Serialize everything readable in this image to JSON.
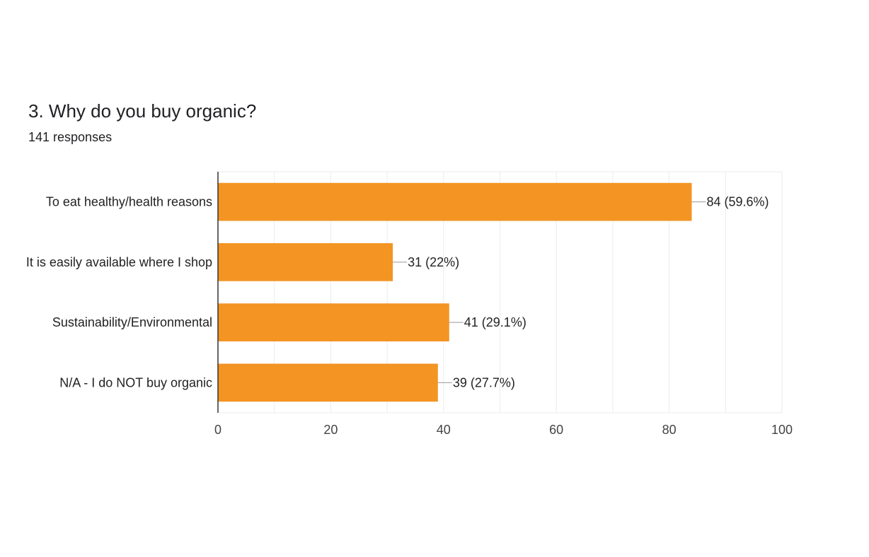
{
  "question": {
    "title": "3. Why do you buy organic?",
    "responses": "141 responses"
  },
  "colors": {
    "bar": "#f39423",
    "grid": "#ebebeb",
    "axis": "#333333",
    "leader": "#999999",
    "label": "#222222",
    "tick": "#444444"
  },
  "chart_data": {
    "type": "bar",
    "orientation": "horizontal",
    "categories": [
      "To eat healthy/health reasons",
      "It is easily available where I shop",
      "Sustainability/Environmental",
      "N/A - I do NOT buy organic"
    ],
    "values": [
      84,
      31,
      41,
      39
    ],
    "data_labels": [
      "84 (59.6%)",
      "31 (22%)",
      "41 (29.1%)",
      "39 (27.7%)"
    ],
    "x_ticks": [
      "0",
      "20",
      "40",
      "60",
      "80",
      "100"
    ],
    "xlim": [
      0,
      100
    ],
    "grid": true,
    "legend": "none"
  }
}
